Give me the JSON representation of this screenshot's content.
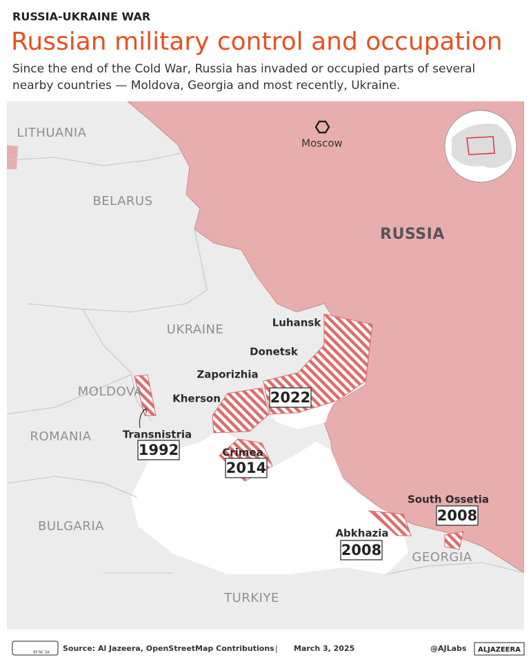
{
  "header": {
    "kicker": "RUSSIA-UKRAINE WAR",
    "title": "Russian military control and occupation",
    "subtitle": [
      "Since the end of the Cold War, Russia has invaded or occupied parts of several",
      "nearby countries — Moldova, Georgia and most recently, Ukraine."
    ]
  },
  "map": {
    "countries": [
      "LITHUANIA",
      "BELARUS",
      "RUSSIA",
      "UKRAINE",
      "MOLDOVA",
      "ROMANIA",
      "BULGARIA",
      "TURKIYE",
      "GEORGIA"
    ],
    "city": "Moscow",
    "occupations": [
      {
        "regions": [
          "Luhansk",
          "Donetsk",
          "Zaporizhia",
          "Kherson"
        ],
        "year": 2022
      },
      {
        "regions": [
          "Transnistria"
        ],
        "year": 1992
      },
      {
        "regions": [
          "Crimea"
        ],
        "year": 2014
      },
      {
        "regions": [
          "South Ossetia"
        ],
        "year": 2008
      },
      {
        "regions": [
          "Abkhazia"
        ],
        "year": 2008
      }
    ]
  },
  "footer": {
    "license": "BY NC SA",
    "source": "Source:  Al Jazeera, OpenStreetMap Contributions",
    "separator": "|",
    "date": "March 3, 2025",
    "handle": "@AJLabs",
    "brand": "ALJAZEERA"
  }
}
